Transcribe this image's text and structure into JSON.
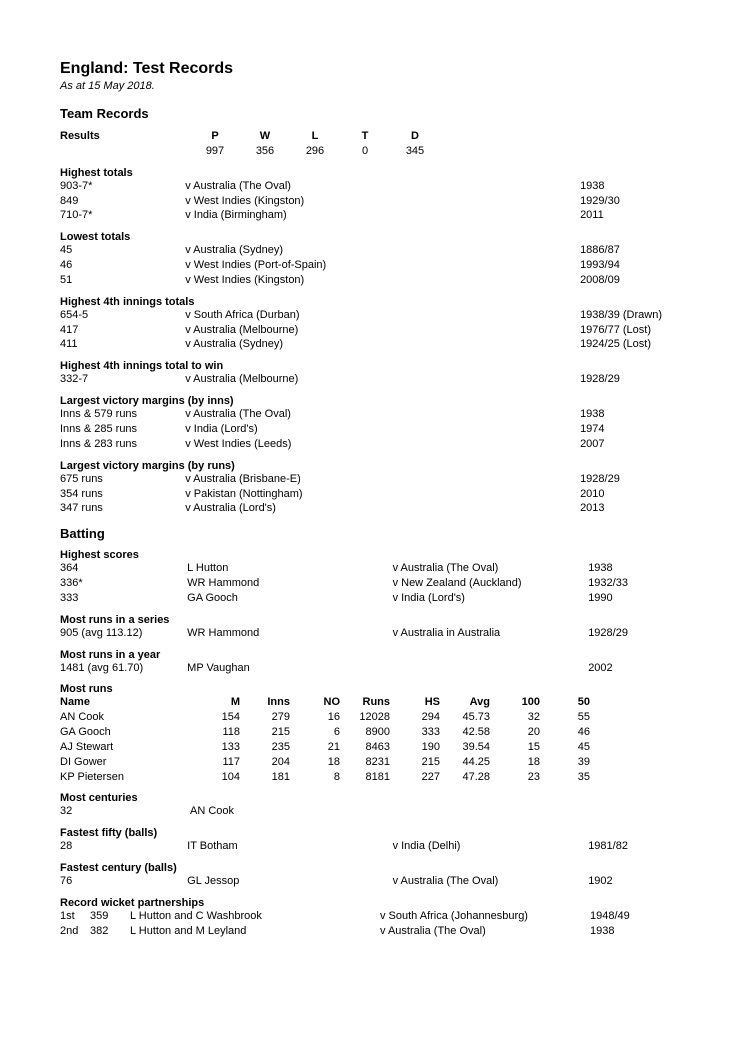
{
  "title": "England: Test Records",
  "asof": "As at 15 May 2018.",
  "section_team": "Team Records",
  "section_batting": "Batting",
  "results": {
    "label": "Results",
    "headers": {
      "P": "P",
      "W": "W",
      "L": "L",
      "T": "T",
      "D": "D"
    },
    "values": {
      "P": "997",
      "W": "356",
      "L": "296",
      "T": "0",
      "D": "345"
    }
  },
  "highest_totals": {
    "title": "Highest totals",
    "rows": [
      {
        "score": "903-7*",
        "opp": "v Australia (The Oval)",
        "yr": "1938"
      },
      {
        "score": "849",
        "opp": "v West Indies (Kingston)",
        "yr": "1929/30"
      },
      {
        "score": "710-7*",
        "opp": "v India (Birmingham)",
        "yr": "2011"
      }
    ]
  },
  "lowest_totals": {
    "title": "Lowest totals",
    "rows": [
      {
        "score": "45",
        "opp": "v Australia (Sydney)",
        "yr": "1886/87"
      },
      {
        "score": "46",
        "opp": "v West Indies (Port-of-Spain)",
        "yr": "1993/94"
      },
      {
        "score": "51",
        "opp": "v West Indies (Kingston)",
        "yr": "2008/09"
      }
    ]
  },
  "highest_4th": {
    "title": "Highest 4th innings totals",
    "rows": [
      {
        "score": "654-5",
        "opp": "v South Africa (Durban)",
        "yr": "1938/39 (Drawn)"
      },
      {
        "score": "417",
        "opp": "v Australia (Melbourne)",
        "yr": "1976/77 (Lost)"
      },
      {
        "score": "411",
        "opp": "v Australia (Sydney)",
        "yr": "1924/25 (Lost)"
      }
    ]
  },
  "highest_4th_win": {
    "title": "Highest 4th innings total to win",
    "rows": [
      {
        "score": "332-7",
        "opp": "v Australia (Melbourne)",
        "yr": "1928/29"
      }
    ]
  },
  "victory_inns": {
    "title": "Largest victory margins (by inns)",
    "rows": [
      {
        "score": "Inns & 579 runs",
        "opp": "v Australia (The Oval)",
        "yr": "1938"
      },
      {
        "score": "Inns & 285 runs",
        "opp": "v India (Lord's)",
        "yr": "1974"
      },
      {
        "score": "Inns & 283 runs",
        "opp": "v West Indies (Leeds)",
        "yr": "2007"
      }
    ]
  },
  "victory_runs": {
    "title": "Largest victory margins (by runs)",
    "rows": [
      {
        "score": "675 runs",
        "opp": "v Australia (Brisbane-E)",
        "yr": "1928/29"
      },
      {
        "score": "354 runs",
        "opp": "v Pakistan (Nottingham)",
        "yr": "2010"
      },
      {
        "score": "347 runs",
        "opp": "v Australia (Lord's)",
        "yr": "2013"
      }
    ]
  },
  "highest_scores": {
    "title": "Highest scores",
    "rows": [
      {
        "score": "364",
        "who": "L Hutton",
        "opp": "v Australia (The Oval)",
        "yr": "1938"
      },
      {
        "score": "336*",
        "who": "WR Hammond",
        "opp": "v New Zealand (Auckland)",
        "yr": "1932/33"
      },
      {
        "score": "333",
        "who": "GA Gooch",
        "opp": "v India (Lord's)",
        "yr": "1990"
      }
    ]
  },
  "most_series": {
    "title": "Most runs in a series",
    "score": "905 (avg 113.12)",
    "who": "WR Hammond",
    "opp": "v Australia in Australia",
    "yr": "1928/29"
  },
  "most_year": {
    "title": "Most runs in a year",
    "score": "1481 (avg 61.70)",
    "who": "MP Vaughan",
    "yr": "2002"
  },
  "most_runs": {
    "title": "Most runs",
    "headers": {
      "Name": "Name",
      "M": "M",
      "Inns": "Inns",
      "NO": "NO",
      "Runs": "Runs",
      "HS": "HS",
      "Avg": "Avg",
      "C100": "100",
      "C50": "50"
    },
    "rows": [
      {
        "Name": "AN Cook",
        "M": "154",
        "Inns": "279",
        "NO": "16",
        "Runs": "12028",
        "HS": "294",
        "Avg": "45.73",
        "C100": "32",
        "C50": "55"
      },
      {
        "Name": "GA Gooch",
        "M": "118",
        "Inns": "215",
        "NO": "6",
        "Runs": "8900",
        "HS": "333",
        "Avg": "42.58",
        "C100": "20",
        "C50": "46"
      },
      {
        "Name": "AJ Stewart",
        "M": "133",
        "Inns": "235",
        "NO": "21",
        "Runs": "8463",
        "HS": "190",
        "Avg": "39.54",
        "C100": "15",
        "C50": "45"
      },
      {
        "Name": "DI Gower",
        "M": "117",
        "Inns": "204",
        "NO": "18",
        "Runs": "8231",
        "HS": "215",
        "Avg": "44.25",
        "C100": "18",
        "C50": "39"
      },
      {
        "Name": "KP Pietersen",
        "M": "104",
        "Inns": "181",
        "NO": "8",
        "Runs": "8181",
        "HS": "227",
        "Avg": "47.28",
        "C100": "23",
        "C50": "35"
      }
    ]
  },
  "most_centuries": {
    "title": "Most centuries",
    "score": "32",
    "who": "AN Cook"
  },
  "fastest_fifty": {
    "title": "Fastest fifty (balls)",
    "score": "28",
    "who": "IT Botham",
    "opp": "v India (Delhi)",
    "yr": "1981/82"
  },
  "fastest_century": {
    "title": "Fastest century (balls)",
    "score": "76",
    "who": "GL Jessop",
    "opp": "v Australia (The Oval)",
    "yr": "1902"
  },
  "partnerships": {
    "title": "Record wicket partnerships",
    "rows": [
      {
        "ord": "1st",
        "runs": "359",
        "who": "L Hutton and C Washbrook",
        "opp": "v South Africa (Johannesburg)",
        "yr": "1948/49"
      },
      {
        "ord": "2nd",
        "runs": "382",
        "who": "L Hutton and M Leyland",
        "opp": "v Australia (The Oval)",
        "yr": "1938"
      }
    ]
  }
}
